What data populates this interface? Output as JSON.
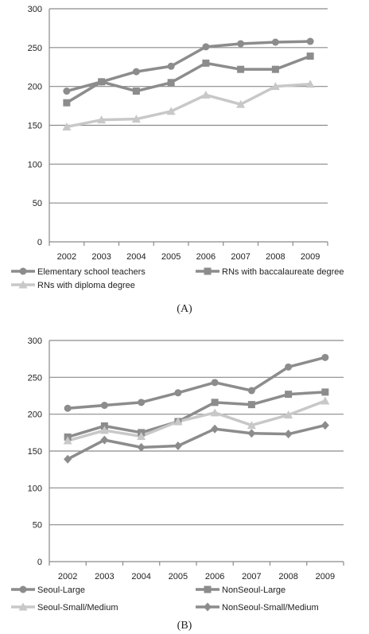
{
  "chart_data": [
    {
      "panel_label": "(A)",
      "type": "line",
      "categories": [
        "2002",
        "2003",
        "2004",
        "2005",
        "2006",
        "2007",
        "2008",
        "2009"
      ],
      "ylim": [
        0,
        300
      ],
      "yticks": [
        0,
        50,
        100,
        150,
        200,
        250,
        300
      ],
      "grid": true,
      "legend_position": "bottom",
      "series": [
        {
          "name": "Elementary school teachers",
          "marker": "circle",
          "color": "#8c8c8c",
          "values": [
            194,
            206,
            219,
            226,
            251,
            255,
            257,
            258
          ]
        },
        {
          "name": "RNs with baccalaureate degree",
          "marker": "square",
          "color": "#8c8c8c",
          "values": [
            179,
            206,
            194,
            205,
            230,
            222,
            222,
            239
          ]
        },
        {
          "name": "RNs with diploma degree",
          "marker": "triangle",
          "color": "#c8c8c8",
          "values": [
            148,
            157,
            158,
            168,
            189,
            177,
            200,
            203
          ]
        }
      ]
    },
    {
      "panel_label": "(B)",
      "type": "line",
      "categories": [
        "2002",
        "2003",
        "2004",
        "2005",
        "2006",
        "2007",
        "2008",
        "2009"
      ],
      "ylim": [
        0,
        300
      ],
      "yticks": [
        0,
        50,
        100,
        150,
        200,
        250,
        300
      ],
      "grid": true,
      "legend_position": "bottom",
      "series": [
        {
          "name": "Seoul-Large",
          "marker": "circle",
          "color": "#8c8c8c",
          "values": [
            208,
            212,
            216,
            229,
            243,
            232,
            264,
            277
          ]
        },
        {
          "name": "NonSeoul-Large",
          "marker": "square",
          "color": "#8c8c8c",
          "values": [
            169,
            184,
            175,
            190,
            216,
            213,
            227,
            230
          ]
        },
        {
          "name": "Seoul-Small/Medium",
          "marker": "triangle",
          "color": "#c8c8c8",
          "values": [
            164,
            178,
            170,
            190,
            202,
            185,
            199,
            218
          ]
        },
        {
          "name": "NonSeoul-Small/Medium",
          "marker": "diamond",
          "color": "#8c8c8c",
          "values": [
            139,
            165,
            155,
            157,
            180,
            174,
            173,
            185
          ]
        }
      ]
    }
  ]
}
